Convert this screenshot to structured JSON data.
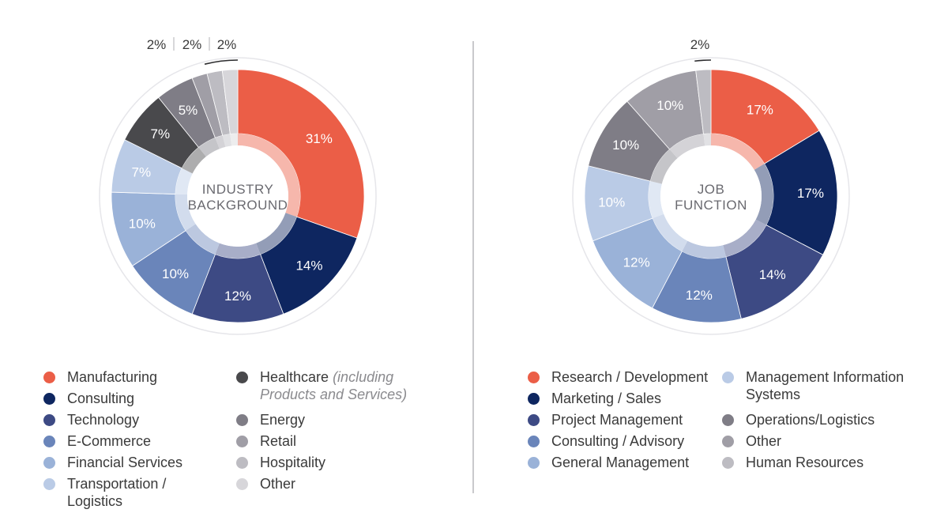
{
  "chart_data": [
    {
      "type": "pie",
      "title": "INDUSTRY BACKGROUND",
      "title_lines": [
        "INDUSTRY",
        "BACKGROUND"
      ],
      "slices": [
        {
          "label": "Manufacturing",
          "value": 31,
          "value_label": "31%",
          "color": "#eb5e47"
        },
        {
          "label": "Consulting",
          "value": 14,
          "value_label": "14%",
          "color": "#0e2660"
        },
        {
          "label": "Technology",
          "value": 12,
          "value_label": "12%",
          "color": "#3d4a84"
        },
        {
          "label": "E-Commerce",
          "value": 10,
          "value_label": "10%",
          "color": "#6a85ba"
        },
        {
          "label": "Financial Services",
          "value": 10,
          "value_label": "10%",
          "color": "#9ab2d8"
        },
        {
          "label": "Transportation / Logistics",
          "value": 7,
          "value_label": "7%",
          "color": "#bacbe6"
        },
        {
          "label": "Healthcare",
          "label_note": "(including Products and Services)",
          "value": 7,
          "value_label": "7%",
          "color": "#49494c"
        },
        {
          "label": "Energy",
          "value": 5,
          "value_label": "5%",
          "color": "#7f7d86"
        },
        {
          "label": "Retail",
          "value": 2,
          "value_label": "2%",
          "color": "#a09ea6"
        },
        {
          "label": "Hospitality",
          "value": 2,
          "value_label": "2%",
          "color": "#bdbcc2"
        },
        {
          "label": "Other",
          "value": 2,
          "value_label": "2%",
          "color": "#d7d6da"
        }
      ],
      "small_callout": "2% | 2% | 2%"
    },
    {
      "type": "pie",
      "title": "JOB FUNCTION",
      "title_lines": [
        "JOB",
        "FUNCTION"
      ],
      "slices": [
        {
          "label": "Research / Development",
          "value": 17,
          "value_label": "17%",
          "color": "#eb5e47"
        },
        {
          "label": "Marketing / Sales",
          "value": 17,
          "value_label": "17%",
          "color": "#0e2660"
        },
        {
          "label": "Project Management",
          "value": 14,
          "value_label": "14%",
          "color": "#3d4a84"
        },
        {
          "label": "Consulting / Advisory",
          "value": 12,
          "value_label": "12%",
          "color": "#6a85ba"
        },
        {
          "label": "General Management",
          "value": 12,
          "value_label": "12%",
          "color": "#9ab2d8"
        },
        {
          "label": "Management Information Systems",
          "value": 10,
          "value_label": "10%",
          "color": "#bacbe6"
        },
        {
          "label": "Operations/Logistics",
          "value": 10,
          "value_label": "10%",
          "color": "#7f7d86"
        },
        {
          "label": "Other",
          "value": 10,
          "value_label": "10%",
          "color": "#a09ea6"
        },
        {
          "label": "Human Resources",
          "value": 2,
          "value_label": "2%",
          "color": "#bdbcc2"
        }
      ],
      "small_callout": "2%"
    }
  ]
}
